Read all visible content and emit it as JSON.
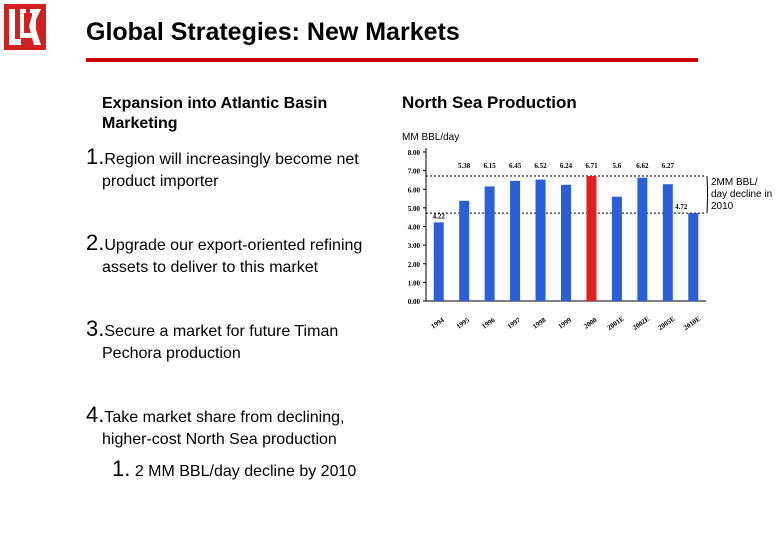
{
  "slide": {
    "title": "Global Strategies: New Markets",
    "subtitle": "Expansion into Atlantic Basin Marketing",
    "bullets": [
      {
        "num": "1.",
        "first": "Region will increasingly become net",
        "rest": "product importer"
      },
      {
        "num": "2.",
        "first": "Upgrade our export-oriented refining",
        "rest": "assets to deliver to this market"
      },
      {
        "num": "3.",
        "first": "Secure a market for future Timan",
        "rest": "Pechora production"
      },
      {
        "num": "4.",
        "first": "Take market share from declining,",
        "rest": "higher-cost North Sea production"
      }
    ],
    "sub_bullet": {
      "num": "1.",
      "text": "2 MM BBL/day decline by 2010"
    }
  },
  "colors": {
    "accent": "#cc0000",
    "bar_blue": "#2b5fd9",
    "bar_red": "#e61e1e"
  },
  "chart_data": {
    "type": "bar",
    "title": "North Sea Production",
    "unit_label": "MM BBL/day",
    "categories": [
      "1994",
      "1995",
      "1996",
      "1997",
      "1998",
      "1999",
      "2000",
      "2001E",
      "2002E",
      "2005E",
      "2010E"
    ],
    "values": [
      4.22,
      5.38,
      6.15,
      6.45,
      6.52,
      6.24,
      6.71,
      5.6,
      6.62,
      6.27,
      4.72
    ],
    "value_labels": [
      "4.22",
      "5.38",
      "6.15",
      "6.45",
      "6.52",
      "6.24",
      "6.71",
      "5.6",
      "6.62",
      "6.27",
      "4.72"
    ],
    "highlight_index": 6,
    "ylim": [
      0,
      8
    ],
    "yticks": [
      "0.00",
      "1.00",
      "2.00",
      "3.00",
      "4.00",
      "5.00",
      "6.00",
      "7.00",
      "8.00"
    ],
    "reference_lines": [
      6.71,
      4.72
    ],
    "annotation": "2MM BBL/ day decline in 2010"
  }
}
